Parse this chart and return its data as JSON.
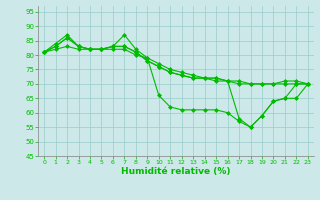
{
  "xlabel": "Humidité relative (%)",
  "xlim": [
    -0.5,
    23.5
  ],
  "ylim": [
    45,
    97
  ],
  "yticks": [
    45,
    50,
    55,
    60,
    65,
    70,
    75,
    80,
    85,
    90,
    95
  ],
  "xticks": [
    0,
    1,
    2,
    3,
    4,
    5,
    6,
    7,
    8,
    9,
    10,
    11,
    12,
    13,
    14,
    15,
    16,
    17,
    18,
    19,
    20,
    21,
    22,
    23
  ],
  "bg_color": "#cce8e8",
  "line_color": "#00bb00",
  "grid_color": "#99cccc",
  "series": [
    [
      81,
      84,
      87,
      83,
      82,
      82,
      83,
      87,
      82,
      79,
      66,
      62,
      61,
      61,
      61,
      61,
      60,
      57,
      55,
      59,
      64,
      65,
      70,
      70
    ],
    [
      81,
      83,
      86,
      83,
      82,
      82,
      83,
      83,
      81,
      78,
      76,
      74,
      73,
      72,
      72,
      71,
      71,
      70,
      70,
      70,
      70,
      70,
      70,
      70
    ],
    [
      81,
      82,
      83,
      82,
      82,
      82,
      82,
      82,
      80,
      79,
      77,
      75,
      74,
      73,
      72,
      72,
      71,
      71,
      70,
      70,
      70,
      71,
      71,
      70
    ],
    [
      81,
      83,
      86,
      83,
      82,
      82,
      83,
      83,
      81,
      78,
      76,
      74,
      73,
      72,
      72,
      72,
      71,
      58,
      55,
      59,
      64,
      65,
      65,
      70
    ]
  ]
}
